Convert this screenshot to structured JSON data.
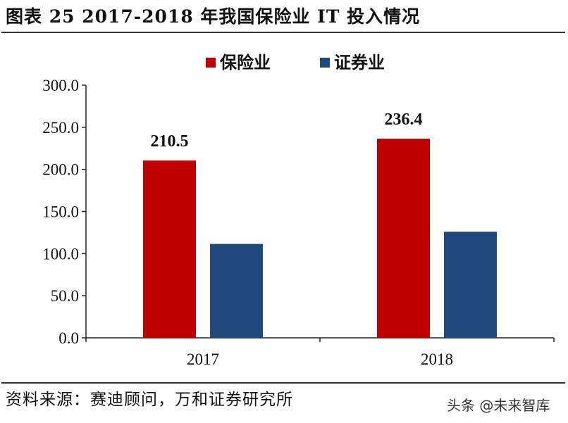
{
  "title": "图表 25   2017-2018 年我国保险业 IT 投入情况",
  "source": "资料来源：赛迪顾问，万和证券研究所",
  "watermark": "头条 @未来智库",
  "chart_data": {
    "type": "bar",
    "categories": [
      "2017",
      "2018"
    ],
    "series": [
      {
        "name": "保险业",
        "color": "#c00000",
        "values": [
          210.5,
          236.4
        ],
        "labels": [
          "210.5",
          "236.4"
        ]
      },
      {
        "name": "证券业",
        "color": "#1f497d",
        "values": [
          111.5,
          126.0
        ],
        "labels": [
          "",
          ""
        ]
      }
    ],
    "ylim": [
      0,
      300
    ],
    "yticks": [
      "0.0",
      "50.0",
      "100.0",
      "150.0",
      "200.0",
      "250.0",
      "300.0"
    ],
    "ytick_values": [
      0,
      50,
      100,
      150,
      200,
      250,
      300
    ],
    "legend": "top-center",
    "grid": false
  }
}
